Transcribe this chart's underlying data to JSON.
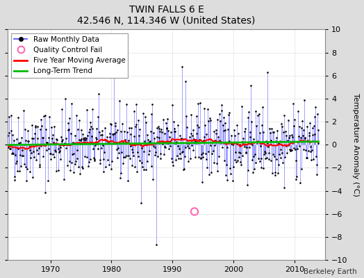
{
  "title": "TWIN FALLS 6 E",
  "subtitle": "42.546 N, 114.346 W (United States)",
  "ylabel": "Temperature Anomaly (°C)",
  "attribution": "Berkeley Earth",
  "ylim": [
    -10,
    10
  ],
  "xlim": [
    1963,
    2015
  ],
  "yticks": [
    -10,
    -8,
    -6,
    -4,
    -2,
    0,
    2,
    4,
    6,
    8,
    10
  ],
  "xticks": [
    1970,
    1980,
    1990,
    2000,
    2010
  ],
  "line_color": "#4444FF",
  "marker_color": "#000000",
  "moving_avg_color": "#FF0000",
  "trend_color": "#00BB00",
  "qc_color": "#FF69B4",
  "bg_color": "#DDDDDD",
  "plot_bg_color": "#FFFFFF",
  "seed": 42,
  "start_year": 1963.0,
  "end_year": 2014.083
}
